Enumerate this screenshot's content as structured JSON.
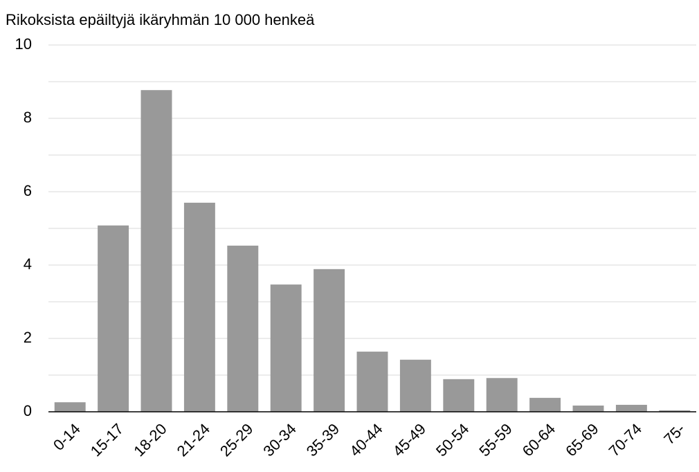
{
  "chart_data": {
    "type": "bar",
    "title": "Rikoksista epäiltyjä ikäryhmän 10 000 henkeä",
    "categories": [
      "0-14",
      "15-17",
      "18-20",
      "21-24",
      "25-29",
      "30-34",
      "35-39",
      "40-44",
      "45-49",
      "50-54",
      "55-59",
      "60-64",
      "65-69",
      "70-74",
      "75-"
    ],
    "values": [
      0.26,
      5.08,
      8.77,
      5.7,
      4.53,
      3.47,
      3.89,
      1.64,
      1.42,
      0.89,
      0.92,
      0.38,
      0.17,
      0.19,
      0.04
    ],
    "color": "#999999",
    "ylim": [
      0,
      10
    ],
    "yticks": [
      0,
      2,
      4,
      6,
      8,
      10
    ],
    "minor_yticks": [
      1,
      3,
      5,
      7,
      9
    ],
    "grid": true
  }
}
